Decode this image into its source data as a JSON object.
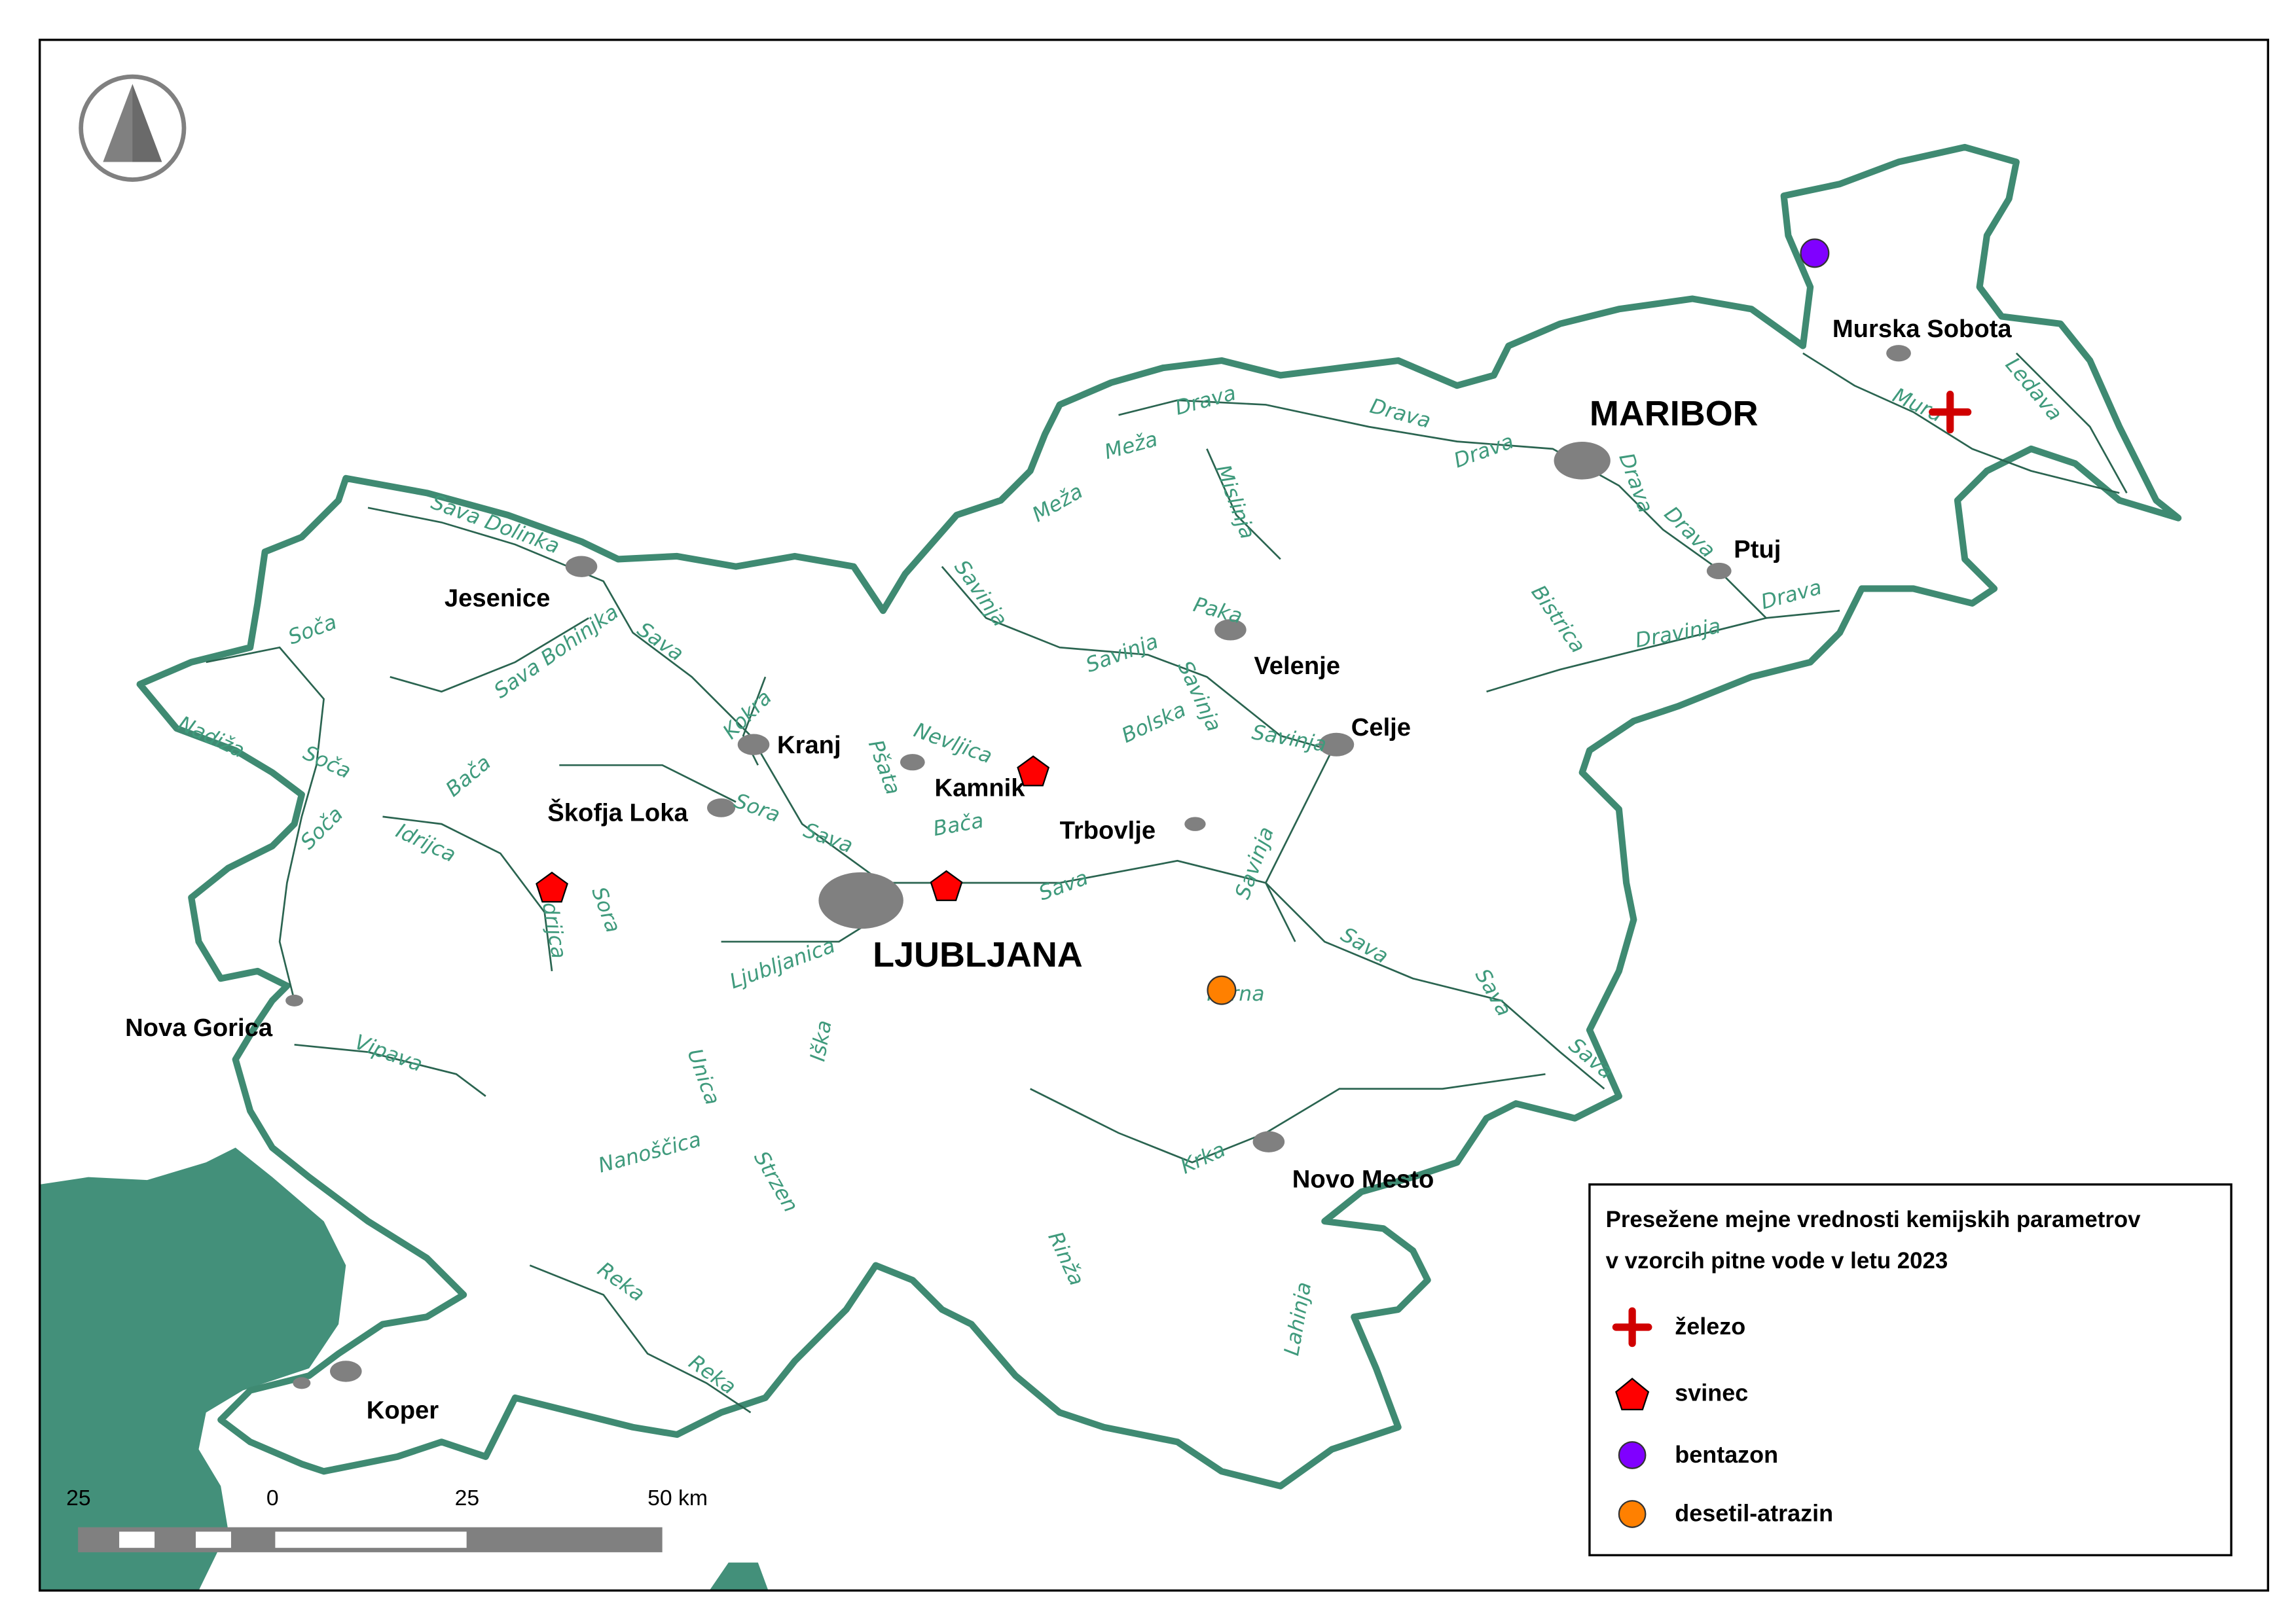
{
  "colors": {
    "border": "#3f8a72",
    "sea": "#43907a",
    "river": "#2a6450",
    "river_label": "#3f9a7c",
    "urban": "#808080",
    "zelezo": "#d00000",
    "svinec": "#ff0000",
    "bentazon": "#8000ff",
    "desetil_atrazin": "#ff8000"
  },
  "north_arrow": {
    "icon": "north-arrow-icon"
  },
  "cities": [
    {
      "name": "Murska Sobota"
    },
    {
      "name": "MARIBOR"
    },
    {
      "name": "Ptuj"
    },
    {
      "name": "Jesenice"
    },
    {
      "name": "Velenje"
    },
    {
      "name": "Celje"
    },
    {
      "name": "Kranj"
    },
    {
      "name": "Kamnik"
    },
    {
      "name": "Škofja Loka"
    },
    {
      "name": "Trbovlje"
    },
    {
      "name": "LJUBLJANA"
    },
    {
      "name": "Nova Gorica"
    },
    {
      "name": "Novo Mesto"
    },
    {
      "name": "Koper"
    }
  ],
  "rivers": [
    "Drava",
    "Drava",
    "Drava",
    "Drava",
    "Drava",
    "Drava",
    "Meža",
    "Meža",
    "Mislinja",
    "Mura",
    "Ledava",
    "Sava Dolinka",
    "Soča",
    "Sava Bohinjka",
    "Sava",
    "Savinja",
    "Savinja",
    "Paka",
    "Savinja",
    "Bolska",
    "Savinja",
    "Bistrica",
    "Dravinja",
    "Nadiža",
    "Soča",
    "Bača",
    "Kokra",
    "Pšata",
    "Nevljica",
    "Sora",
    "Sava",
    "Bača",
    "Soča",
    "Idrijca",
    "Idrijca",
    "Sora",
    "Sava",
    "Savinja",
    "Ljubljanica",
    "Sava",
    "Sava",
    "Mirna",
    "Sava",
    "Vipava",
    "Iška",
    "Unica",
    "Nanoščica",
    "Krka",
    "Strzen",
    "Rinža",
    "Lahinja",
    "Reka",
    "Reka"
  ],
  "markers": [
    {
      "type": "zelezo",
      "near": "Mura"
    },
    {
      "type": "svinec",
      "near": "Kamnik"
    },
    {
      "type": "svinec",
      "near": "Ljubljana"
    },
    {
      "type": "svinec",
      "near": "Idrijca"
    },
    {
      "type": "bentazon",
      "near": "Murska Sobota"
    },
    {
      "type": "desetil_atrazin",
      "near": "Mirna"
    }
  ],
  "legend": {
    "title_line1": "Presežene mejne vrednosti kemijskih parametrov",
    "title_line2": "v vzorcih pitne vode v letu 2023",
    "items": [
      {
        "key": "zelezo",
        "label": "železo",
        "symbol": "cross"
      },
      {
        "key": "svinec",
        "label": "svinec",
        "symbol": "pentagon"
      },
      {
        "key": "bentazon",
        "label": "bentazon",
        "symbol": "circle"
      },
      {
        "key": "desetil_atrazin",
        "label": "desetil-atrazin",
        "symbol": "circle"
      }
    ]
  },
  "scale_bar": {
    "labels": [
      "25",
      "0",
      "25",
      "50 km"
    ]
  }
}
